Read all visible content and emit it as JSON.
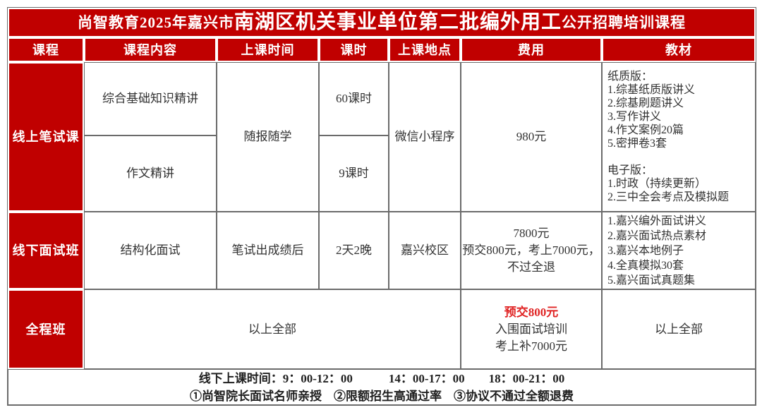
{
  "colors": {
    "brand_red": "#c00000",
    "accent_text_red": "#e02424",
    "grid_border": "#6b6b6b",
    "body_text": "#333333"
  },
  "title": {
    "prefix": "尚智教育2025年嘉兴市",
    "emphasis": "南湖区机关事业单位第二批编外用工",
    "suffix": "公开招聘培训课程"
  },
  "header": {
    "course": "课程",
    "content": "课程内容",
    "time": "上课时间",
    "hours": "课时",
    "location": "上课地点",
    "fee": "费用",
    "materials": "教材"
  },
  "rows": {
    "online": {
      "name": "线上笔试课",
      "content_1": "综合基础知识精讲",
      "content_2": "作文精讲",
      "time": "随报随学",
      "hours_1": "60课时",
      "hours_2": "9课时",
      "location": "微信小程序",
      "fee": "980元",
      "materials": [
        "纸质版：",
        "1.综基纸质版讲义",
        "2.综基刷题讲义",
        "3.写作讲义",
        "4.作文案例20篇",
        "5.密押卷3套",
        "",
        "电子版：",
        "1.时政（持续更新）",
        "2.三中全会考点及模拟题"
      ]
    },
    "offline": {
      "name": "线下面试班",
      "content": "结构化面试",
      "time": "笔试出成绩后",
      "hours": "2天2晚",
      "location": "嘉兴校区",
      "fee_line1": "7800元",
      "fee_line2": "预交800元，考上7000元，",
      "fee_line3": "不过全退",
      "materials": [
        "1.嘉兴编外面试讲义",
        "2.嘉兴面试热点素材",
        "3.嘉兴本地例子",
        "4.全真模拟30套",
        "5.嘉兴面试真题集"
      ]
    },
    "full": {
      "name": "全程班",
      "content": "以上全部",
      "fee_line1": "预交800元",
      "fee_line2": "入围面试培训",
      "fee_line3": "考上补7000元",
      "materials": "以上全部"
    }
  },
  "footer": {
    "line1": "线下上课时间：9：00-12：00　　　14：00-17：00　　18：00-21：00",
    "line2": "①尚智院长面试名师亲授　②限额招生高通过率　③协议不通过全额退费"
  }
}
